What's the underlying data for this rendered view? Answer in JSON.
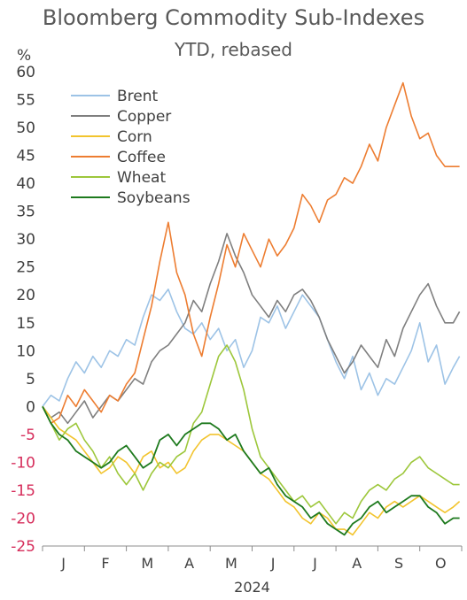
{
  "chart_data": {
    "type": "line",
    "title": "Bloomberg Commodity Sub-Indexes",
    "subtitle": "YTD, rebased",
    "ylabel": "%",
    "xlabel": "2024",
    "ylim": [
      -25,
      60
    ],
    "yticks": [
      60,
      55,
      50,
      45,
      40,
      35,
      30,
      25,
      20,
      15,
      10,
      5,
      0,
      -5,
      -10,
      -15,
      -20,
      -25
    ],
    "xlim": [
      0,
      10
    ],
    "months": [
      "J",
      "F",
      "M",
      "A",
      "M",
      "J",
      "J",
      "A",
      "S",
      "O"
    ],
    "grid": false,
    "legend_position": "top-left",
    "negative_tick_color": "#d62d5b",
    "positive_tick_color": "#404040",
    "series": [
      {
        "name": "Brent",
        "color": "#9dc3e6",
        "width": 1.6,
        "x": [
          0,
          0.2,
          0.4,
          0.6,
          0.8,
          1.0,
          1.2,
          1.4,
          1.6,
          1.8,
          2.0,
          2.2,
          2.4,
          2.6,
          2.8,
          3.0,
          3.2,
          3.4,
          3.6,
          3.8,
          4.0,
          4.2,
          4.4,
          4.6,
          4.8,
          5.0,
          5.2,
          5.4,
          5.6,
          5.8,
          6.0,
          6.2,
          6.4,
          6.6,
          6.8,
          7.0,
          7.2,
          7.4,
          7.6,
          7.8,
          8.0,
          8.2,
          8.4,
          8.6,
          8.8,
          9.0,
          9.2,
          9.4,
          9.6,
          9.8,
          9.95
        ],
        "y": [
          0,
          2,
          1,
          5,
          8,
          6,
          9,
          7,
          10,
          9,
          12,
          11,
          16,
          20,
          19,
          21,
          17,
          14,
          13,
          15,
          12,
          14,
          10,
          12,
          7,
          10,
          16,
          15,
          18,
          14,
          17,
          20,
          18,
          16,
          12,
          8,
          5,
          9,
          3,
          6,
          2,
          5,
          4,
          7,
          10,
          15,
          8,
          11,
          4,
          7,
          9
        ]
      },
      {
        "name": "Copper",
        "color": "#7f7f7f",
        "width": 1.6,
        "x": [
          0,
          0.2,
          0.4,
          0.6,
          0.8,
          1.0,
          1.2,
          1.4,
          1.6,
          1.8,
          2.0,
          2.2,
          2.4,
          2.6,
          2.8,
          3.0,
          3.2,
          3.4,
          3.6,
          3.8,
          4.0,
          4.2,
          4.4,
          4.6,
          4.8,
          5.0,
          5.2,
          5.4,
          5.6,
          5.8,
          6.0,
          6.2,
          6.4,
          6.6,
          6.8,
          7.0,
          7.2,
          7.4,
          7.6,
          7.8,
          8.0,
          8.2,
          8.4,
          8.6,
          8.8,
          9.0,
          9.2,
          9.4,
          9.6,
          9.8,
          9.95
        ],
        "y": [
          0,
          -2,
          -1,
          -3,
          -1,
          1,
          -2,
          0,
          2,
          1,
          3,
          5,
          4,
          8,
          10,
          11,
          13,
          15,
          19,
          17,
          22,
          26,
          31,
          27,
          24,
          20,
          18,
          16,
          19,
          17,
          20,
          21,
          19,
          16,
          12,
          9,
          6,
          8,
          11,
          9,
          7,
          12,
          9,
          14,
          17,
          20,
          22,
          18,
          15,
          15,
          17
        ]
      },
      {
        "name": "Corn",
        "color": "#f2c42e",
        "width": 1.6,
        "x": [
          0,
          0.2,
          0.4,
          0.6,
          0.8,
          1.0,
          1.2,
          1.4,
          1.6,
          1.8,
          2.0,
          2.2,
          2.4,
          2.6,
          2.8,
          3.0,
          3.2,
          3.4,
          3.6,
          3.8,
          4.0,
          4.2,
          4.4,
          4.6,
          4.8,
          5.0,
          5.2,
          5.4,
          5.6,
          5.8,
          6.0,
          6.2,
          6.4,
          6.6,
          6.8,
          7.0,
          7.2,
          7.4,
          7.6,
          7.8,
          8.0,
          8.2,
          8.4,
          8.6,
          8.8,
          9.0,
          9.2,
          9.4,
          9.6,
          9.8,
          9.95
        ],
        "y": [
          0,
          -2,
          -4,
          -5,
          -6,
          -8,
          -10,
          -12,
          -11,
          -9,
          -10,
          -12,
          -9,
          -8,
          -11,
          -10,
          -12,
          -11,
          -8,
          -6,
          -5,
          -5,
          -6,
          -7,
          -8,
          -10,
          -12,
          -13,
          -15,
          -17,
          -18,
          -20,
          -21,
          -19,
          -20,
          -22,
          -22,
          -23,
          -21,
          -19,
          -20,
          -18,
          -17,
          -18,
          -17,
          -16,
          -17,
          -18,
          -19,
          -18,
          -17
        ]
      },
      {
        "name": "Coffee",
        "color": "#ed7d31",
        "width": 1.6,
        "x": [
          0,
          0.2,
          0.4,
          0.6,
          0.8,
          1.0,
          1.2,
          1.4,
          1.6,
          1.8,
          2.0,
          2.2,
          2.4,
          2.6,
          2.8,
          3.0,
          3.2,
          3.4,
          3.6,
          3.8,
          4.0,
          4.2,
          4.4,
          4.6,
          4.8,
          5.0,
          5.2,
          5.4,
          5.6,
          5.8,
          6.0,
          6.2,
          6.4,
          6.6,
          6.8,
          7.0,
          7.2,
          7.4,
          7.6,
          7.8,
          8.0,
          8.2,
          8.4,
          8.6,
          8.8,
          9.0,
          9.2,
          9.4,
          9.6,
          9.8,
          9.95
        ],
        "y": [
          0,
          -3,
          -2,
          2,
          0,
          3,
          1,
          -1,
          2,
          1,
          4,
          6,
          12,
          18,
          26,
          33,
          24,
          20,
          13,
          9,
          16,
          22,
          29,
          25,
          31,
          28,
          25,
          30,
          27,
          29,
          32,
          38,
          36,
          33,
          37,
          38,
          41,
          40,
          43,
          47,
          44,
          50,
          54,
          58,
          52,
          48,
          49,
          45,
          43,
          43,
          43
        ]
      },
      {
        "name": "Wheat",
        "color": "#9dc73b",
        "width": 1.6,
        "x": [
          0,
          0.2,
          0.4,
          0.6,
          0.8,
          1.0,
          1.2,
          1.4,
          1.6,
          1.8,
          2.0,
          2.2,
          2.4,
          2.6,
          2.8,
          3.0,
          3.2,
          3.4,
          3.6,
          3.8,
          4.0,
          4.2,
          4.4,
          4.6,
          4.8,
          5.0,
          5.2,
          5.4,
          5.6,
          5.8,
          6.0,
          6.2,
          6.4,
          6.6,
          6.8,
          7.0,
          7.2,
          7.4,
          7.6,
          7.8,
          8.0,
          8.2,
          8.4,
          8.6,
          8.8,
          9.0,
          9.2,
          9.4,
          9.6,
          9.8,
          9.95
        ],
        "y": [
          0,
          -3,
          -6,
          -4,
          -3,
          -6,
          -8,
          -11,
          -9,
          -12,
          -14,
          -12,
          -15,
          -12,
          -10,
          -11,
          -9,
          -8,
          -3,
          -1,
          4,
          9,
          11,
          8,
          3,
          -4,
          -9,
          -11,
          -13,
          -15,
          -17,
          -16,
          -18,
          -17,
          -19,
          -21,
          -19,
          -20,
          -17,
          -15,
          -14,
          -15,
          -13,
          -12,
          -10,
          -9,
          -11,
          -12,
          -13,
          -14,
          -14
        ]
      },
      {
        "name": "Soybeans",
        "color": "#1e7a1e",
        "width": 1.8,
        "x": [
          0,
          0.2,
          0.4,
          0.6,
          0.8,
          1.0,
          1.2,
          1.4,
          1.6,
          1.8,
          2.0,
          2.2,
          2.4,
          2.6,
          2.8,
          3.0,
          3.2,
          3.4,
          3.6,
          3.8,
          4.0,
          4.2,
          4.4,
          4.6,
          4.8,
          5.0,
          5.2,
          5.4,
          5.6,
          5.8,
          6.0,
          6.2,
          6.4,
          6.6,
          6.8,
          7.0,
          7.2,
          7.4,
          7.6,
          7.8,
          8.0,
          8.2,
          8.4,
          8.6,
          8.8,
          9.0,
          9.2,
          9.4,
          9.6,
          9.8,
          9.95
        ],
        "y": [
          0,
          -3,
          -5,
          -6,
          -8,
          -9,
          -10,
          -11,
          -10,
          -8,
          -7,
          -9,
          -11,
          -10,
          -6,
          -5,
          -7,
          -5,
          -4,
          -3,
          -3,
          -4,
          -6,
          -5,
          -8,
          -10,
          -12,
          -11,
          -14,
          -16,
          -17,
          -18,
          -20,
          -19,
          -21,
          -22,
          -23,
          -21,
          -20,
          -18,
          -17,
          -19,
          -18,
          -17,
          -16,
          -16,
          -18,
          -19,
          -21,
          -20,
          -20
        ]
      }
    ]
  }
}
